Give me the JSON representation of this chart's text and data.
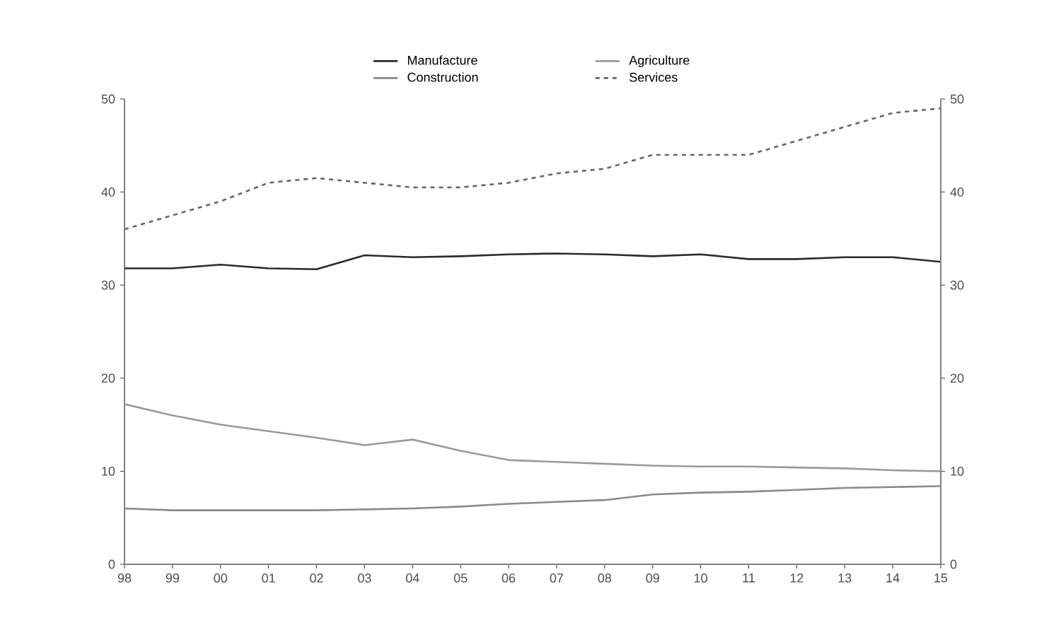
{
  "chart_data": {
    "type": "line",
    "categories": [
      "98",
      "99",
      "00",
      "01",
      "02",
      "03",
      "04",
      "05",
      "06",
      "07",
      "08",
      "09",
      "10",
      "11",
      "12",
      "13",
      "14",
      "15"
    ],
    "series": [
      {
        "name": "Manufacture",
        "color": "#2b2b2b",
        "values": [
          31.8,
          31.8,
          32.2,
          31.8,
          31.7,
          33.2,
          33.0,
          33.1,
          33.3,
          33.4,
          33.3,
          33.1,
          33.3,
          32.8,
          32.8,
          33.0,
          33.0,
          32.5
        ]
      },
      {
        "name": "Agriculture",
        "color": "#9a9a9a",
        "values": [
          17.2,
          16.0,
          15.0,
          14.3,
          13.6,
          12.8,
          13.4,
          12.2,
          11.2,
          11.0,
          10.8,
          10.6,
          10.5,
          10.5,
          10.4,
          10.3,
          10.1,
          10.0
        ]
      },
      {
        "name": "Construction",
        "color": "#8a8a8a",
        "values": [
          6.0,
          5.8,
          5.8,
          5.8,
          5.8,
          5.9,
          6.0,
          6.2,
          6.5,
          6.7,
          6.9,
          7.5,
          7.7,
          7.8,
          8.0,
          8.2,
          8.3,
          8.4
        ]
      },
      {
        "name": "Services",
        "color": "#666666",
        "line_style": "dashed",
        "values": [
          36.0,
          37.5,
          39.0,
          41.0,
          41.5,
          41.0,
          40.5,
          40.5,
          41.0,
          42.0,
          42.5,
          44.0,
          44.0,
          44.0,
          45.5,
          47.0,
          48.5,
          49.0
        ]
      }
    ],
    "ylim": [
      0,
      50
    ],
    "yticks": [
      0,
      10,
      20,
      30,
      40,
      50
    ],
    "y2lim": [
      0,
      50
    ],
    "y2ticks": [
      0,
      10,
      20,
      30,
      40,
      50
    ],
    "legend": "top",
    "grid": false,
    "marker": "none",
    "line_style": "solid"
  }
}
